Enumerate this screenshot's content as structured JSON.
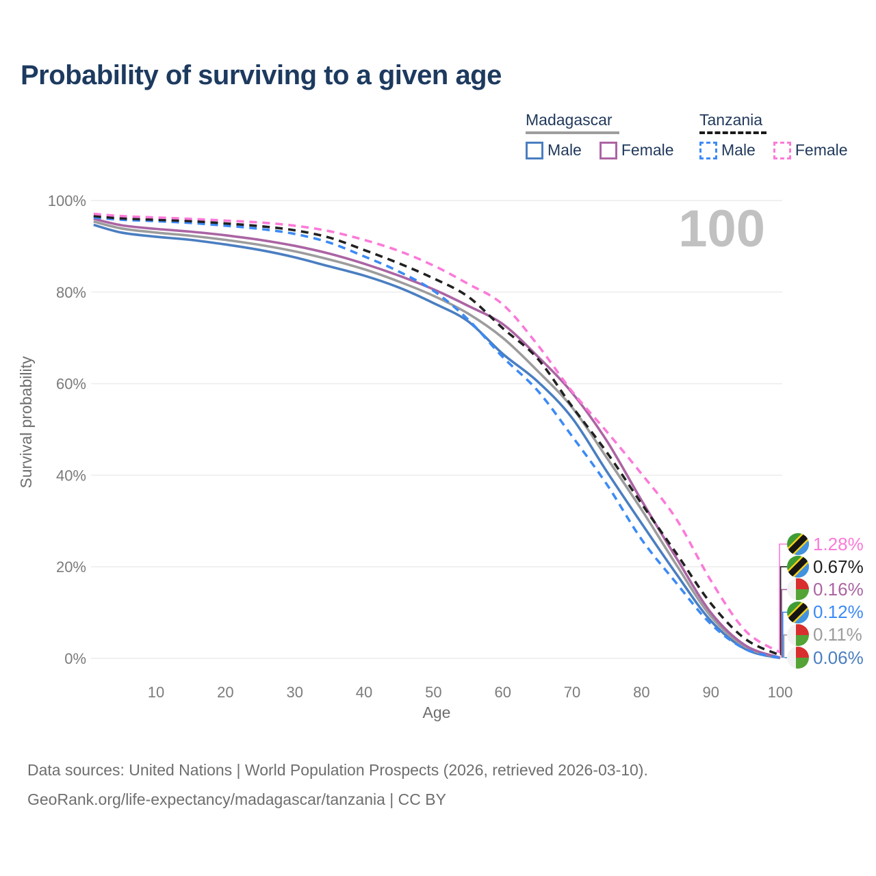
{
  "title": "Probability of surviving to a given age",
  "hover_age_label": "100",
  "legend": {
    "madagascar": {
      "name": "Madagascar",
      "style": "solid",
      "header_line_color": "#9e9e9e",
      "male_label": "Male",
      "male_color": "#4a7ec1",
      "female_label": "Female",
      "female_color": "#ab64a3"
    },
    "tanzania": {
      "name": "Tanzania",
      "style": "dashed",
      "header_line_color": "#1a1a1a",
      "male_label": "Male",
      "male_color": "#3c8af5",
      "female_label": "Female",
      "female_color": "#fb7ad8"
    }
  },
  "chart_data": {
    "type": "line",
    "title": "Probability of surviving to a given age",
    "xlabel": "Age",
    "ylabel": "Survival probability",
    "xlim": [
      0,
      100
    ],
    "ylim": [
      0,
      100
    ],
    "grid": "horizontal-only",
    "legend_position": "top-right",
    "x_ticks": [
      10,
      20,
      30,
      40,
      50,
      60,
      70,
      80,
      90,
      100
    ],
    "y_ticks": [
      {
        "value": 0,
        "label": "0%"
      },
      {
        "value": 20,
        "label": "20%"
      },
      {
        "value": 40,
        "label": "40%"
      },
      {
        "value": 60,
        "label": "60%"
      },
      {
        "value": 80,
        "label": "80%"
      },
      {
        "value": 100,
        "label": "100%"
      }
    ],
    "x": [
      1,
      5,
      10,
      15,
      20,
      25,
      30,
      35,
      40,
      45,
      50,
      55,
      60,
      65,
      70,
      75,
      80,
      85,
      90,
      95,
      100
    ],
    "series": [
      {
        "id": "madagascar_male",
        "name": "Madagascar Male",
        "country": "Madagascar",
        "sex": "Male",
        "color": "#4a7ec1",
        "dashed": false,
        "flag": "madagascar",
        "end_label": "0.06%",
        "values": [
          94.7,
          93.0,
          92.1,
          91.4,
          90.4,
          89.2,
          87.6,
          85.6,
          83.6,
          81.0,
          77.6,
          73.6,
          66.5,
          60.5,
          52.5,
          40.8,
          29.5,
          18.5,
          8.2,
          2.0,
          0.06
        ]
      },
      {
        "id": "madagascar_total",
        "name": "Madagascar",
        "country": "Madagascar",
        "sex": "Both",
        "color": "#9c9c9c",
        "dashed": false,
        "flag": "madagascar",
        "end_label": "0.11%",
        "values": [
          95.4,
          93.9,
          93.0,
          92.3,
          91.4,
          90.3,
          88.9,
          87.1,
          85.0,
          82.3,
          79.2,
          75.3,
          70.0,
          62.8,
          54.8,
          43.8,
          32.5,
          20.5,
          9.2,
          2.5,
          0.11
        ]
      },
      {
        "id": "madagascar_female",
        "name": "Madagascar Female",
        "country": "Madagascar",
        "sex": "Female",
        "color": "#ab64a3",
        "dashed": false,
        "flag": "madagascar",
        "end_label": "0.16%",
        "values": [
          96.0,
          94.6,
          93.8,
          93.2,
          92.4,
          91.4,
          90.1,
          88.4,
          86.2,
          83.6,
          80.6,
          77.0,
          73.0,
          66.0,
          58.0,
          47.5,
          34.5,
          22.0,
          10.0,
          2.8,
          0.16
        ]
      },
      {
        "id": "tanzania_male",
        "name": "Tanzania Male",
        "country": "Tanzania",
        "sex": "Male",
        "color": "#3c8af5",
        "dashed": true,
        "flag": "tanzania",
        "end_label": "0.12%",
        "values": [
          96.3,
          95.8,
          95.5,
          95.1,
          94.5,
          93.8,
          92.7,
          90.8,
          87.8,
          84.5,
          80.3,
          74.0,
          65.8,
          58.5,
          48.5,
          38.0,
          26.0,
          16.5,
          7.5,
          2.0,
          0.12
        ]
      },
      {
        "id": "tanzania_total",
        "name": "Tanzania",
        "country": "Tanzania",
        "sex": "Both",
        "color": "#212121",
        "dashed": true,
        "flag": "tanzania",
        "end_label": "0.67%",
        "values": [
          96.6,
          96.1,
          95.8,
          95.5,
          95.0,
          94.4,
          93.5,
          91.9,
          89.2,
          86.3,
          83.0,
          79.0,
          72.1,
          65.5,
          55.0,
          45.0,
          33.8,
          23.0,
          12.0,
          4.2,
          0.67
        ]
      },
      {
        "id": "tanzania_female",
        "name": "Tanzania Female",
        "country": "Tanzania",
        "sex": "Female",
        "color": "#fb7ad8",
        "dashed": true,
        "flag": "tanzania",
        "end_label": "1.28%",
        "values": [
          97.1,
          96.6,
          96.3,
          96.0,
          95.6,
          95.2,
          94.5,
          93.3,
          91.4,
          89.0,
          85.8,
          81.8,
          77.3,
          68.5,
          58.3,
          49.5,
          40.3,
          30.5,
          17.0,
          6.0,
          1.28
        ]
      }
    ],
    "label_rows": [
      "tanzania_female",
      "tanzania_total",
      "madagascar_female",
      "tanzania_male",
      "madagascar_total",
      "madagascar_male"
    ]
  },
  "footer": {
    "line1": "Data sources: United Nations | World Population Prospects (2026, retrieved 2026-03-10).",
    "line2": "GeoRank.org/life-expectancy/madagascar/tanzania | CC BY"
  }
}
